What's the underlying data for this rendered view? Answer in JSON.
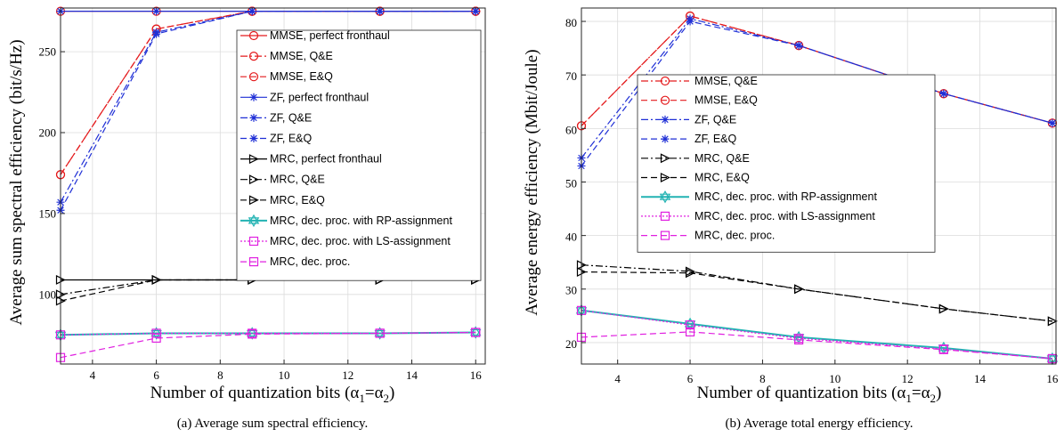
{
  "chart_data": [
    {
      "type": "line",
      "caption": "(a) Average sum spectral efficiency.",
      "xlabel": "Number of quantization bits (α",
      "xlabel_sub1": "1",
      "xlabel_eq": "=α",
      "xlabel_sub2": "2",
      "xlabel_close": ")",
      "ylabel": "Average sum spectral efficiency (bit/s/Hz)",
      "xlim": [
        3,
        16.3
      ],
      "ylim": [
        57,
        277
      ],
      "xticks": [
        4,
        6,
        8,
        10,
        12,
        14,
        16
      ],
      "yticks": [
        100,
        150,
        200,
        250
      ],
      "grid": true,
      "legend_position": "top-right",
      "series": [
        {
          "name": "MMSE, perfect fronthaul",
          "color": "#e41a1c",
          "dash": "",
          "marker": "circle",
          "x": [
            3,
            6,
            9,
            13,
            16
          ],
          "y": [
            275,
            275,
            275,
            275,
            275
          ]
        },
        {
          "name": "MMSE, Q&E",
          "color": "#e41a1c",
          "dash": "8 3 2 3",
          "marker": "circle",
          "x": [
            3,
            6,
            9,
            13,
            16
          ],
          "y": [
            174,
            264,
            275,
            275,
            275
          ]
        },
        {
          "name": "MMSE, E&Q",
          "color": "#e41a1c",
          "dash": "7 4",
          "marker": "circle",
          "x": [
            3,
            6,
            9,
            13,
            16
          ],
          "y": [
            174,
            264,
            275,
            275,
            275
          ]
        },
        {
          "name": "ZF, perfect fronthaul",
          "color": "#1f2fd6",
          "dash": "",
          "marker": "star",
          "x": [
            3,
            6,
            9,
            13,
            16
          ],
          "y": [
            275,
            275,
            275,
            275,
            275
          ]
        },
        {
          "name": "ZF, Q&E",
          "color": "#1f2fd6",
          "dash": "8 3 2 3",
          "marker": "star",
          "x": [
            3,
            6,
            9,
            13,
            16
          ],
          "y": [
            157,
            262,
            275,
            275,
            275
          ]
        },
        {
          "name": "ZF, E&Q",
          "color": "#1f2fd6",
          "dash": "7 4",
          "marker": "star",
          "x": [
            3,
            6,
            9,
            13,
            16
          ],
          "y": [
            152,
            261,
            275,
            275,
            275
          ]
        },
        {
          "name": "MRC, perfect fronthaul",
          "color": "#000000",
          "dash": "",
          "marker": "triangle",
          "x": [
            3,
            6,
            9,
            13,
            16
          ],
          "y": [
            109,
            109,
            109,
            109,
            109
          ]
        },
        {
          "name": "MRC, Q&E",
          "color": "#000000",
          "dash": "8 3 2 3",
          "marker": "triangle",
          "x": [
            3,
            6,
            9,
            13,
            16
          ],
          "y": [
            100,
            109,
            109,
            109,
            109
          ]
        },
        {
          "name": "MRC, E&Q",
          "color": "#000000",
          "dash": "7 4",
          "marker": "triangle",
          "x": [
            3,
            6,
            9,
            13,
            16
          ],
          "y": [
            96,
            109,
            109,
            109,
            109
          ]
        },
        {
          "name": "MRC, dec. proc. with RP-assignment",
          "color": "#22b3b3",
          "dash": "",
          "marker": "hexagram",
          "x": [
            3,
            6,
            9,
            13,
            16
          ],
          "y": [
            75,
            76,
            76,
            76,
            76.5
          ]
        },
        {
          "name": "MRC, dec. proc. with LS-assignment",
          "color": "#e020e0",
          "dash": "2 2",
          "marker": "square",
          "x": [
            3,
            6,
            9,
            13,
            16
          ],
          "y": [
            75,
            76,
            76,
            76,
            76.5
          ]
        },
        {
          "name": "MRC, dec. proc.",
          "color": "#e020e0",
          "dash": "7 4",
          "marker": "square",
          "x": [
            3,
            6,
            9,
            13,
            16
          ],
          "y": [
            61,
            73,
            75.5,
            76,
            76.5
          ]
        }
      ]
    },
    {
      "type": "line",
      "caption": "(b) Average total energy efficiency.",
      "xlabel": "Number of quantization bits (α",
      "xlabel_sub1": "1",
      "xlabel_eq": "=α",
      "xlabel_sub2": "2",
      "xlabel_close": ")",
      "ylabel": "Average energy efficiency (Mbit/Joule)",
      "xlim": [
        3,
        16.1
      ],
      "ylim": [
        16,
        82.5
      ],
      "xticks": [
        4,
        6,
        8,
        10,
        12,
        14,
        16
      ],
      "yticks": [
        20,
        30,
        40,
        50,
        60,
        70,
        80
      ],
      "grid": true,
      "legend_position": "center-left",
      "series": [
        {
          "name": "MMSE, Q&E",
          "color": "#e41a1c",
          "dash": "8 3 2 3",
          "marker": "circle",
          "x": [
            3,
            6,
            9,
            13,
            16
          ],
          "y": [
            60.5,
            81,
            75.5,
            66.5,
            61
          ]
        },
        {
          "name": "MMSE, E&Q",
          "color": "#e41a1c",
          "dash": "7 4",
          "marker": "circle",
          "x": [
            3,
            6,
            9,
            13,
            16
          ],
          "y": [
            60.5,
            81,
            75.5,
            66.5,
            61
          ]
        },
        {
          "name": "ZF, Q&E",
          "color": "#1f2fd6",
          "dash": "8 3 2 3",
          "marker": "star",
          "x": [
            3,
            6,
            9,
            13,
            16
          ],
          "y": [
            54.5,
            80.5,
            75.5,
            66.5,
            61
          ]
        },
        {
          "name": "ZF, E&Q",
          "color": "#1f2fd6",
          "dash": "7 4",
          "marker": "star",
          "x": [
            3,
            6,
            9,
            13,
            16
          ],
          "y": [
            53,
            80,
            75.5,
            66.5,
            61
          ]
        },
        {
          "name": "MRC, Q&E",
          "color": "#000000",
          "dash": "8 3 2 3",
          "marker": "triangle",
          "x": [
            3,
            6,
            9,
            13,
            16
          ],
          "y": [
            34.5,
            33.3,
            30,
            26.3,
            24
          ]
        },
        {
          "name": "MRC, E&Q",
          "color": "#000000",
          "dash": "7 4",
          "marker": "triangle",
          "x": [
            3,
            6,
            9,
            13,
            16
          ],
          "y": [
            33.2,
            33,
            30,
            26.3,
            24
          ]
        },
        {
          "name": "MRC, dec. proc. with RP-assignment",
          "color": "#22b3b3",
          "dash": "",
          "marker": "hexagram",
          "x": [
            3,
            6,
            9,
            13,
            16
          ],
          "y": [
            26,
            23.5,
            21,
            19,
            17
          ]
        },
        {
          "name": "MRC, dec. proc. with LS-assignment",
          "color": "#e020e0",
          "dash": "2 2",
          "marker": "square",
          "x": [
            3,
            6,
            9,
            13,
            16
          ],
          "y": [
            26,
            23.3,
            20.8,
            18.8,
            17
          ]
        },
        {
          "name": "MRC, dec. proc.",
          "color": "#e020e0",
          "dash": "7 4",
          "marker": "square",
          "x": [
            3,
            6,
            9,
            13,
            16
          ],
          "y": [
            21,
            22,
            20.5,
            18.7,
            17
          ]
        }
      ]
    }
  ]
}
